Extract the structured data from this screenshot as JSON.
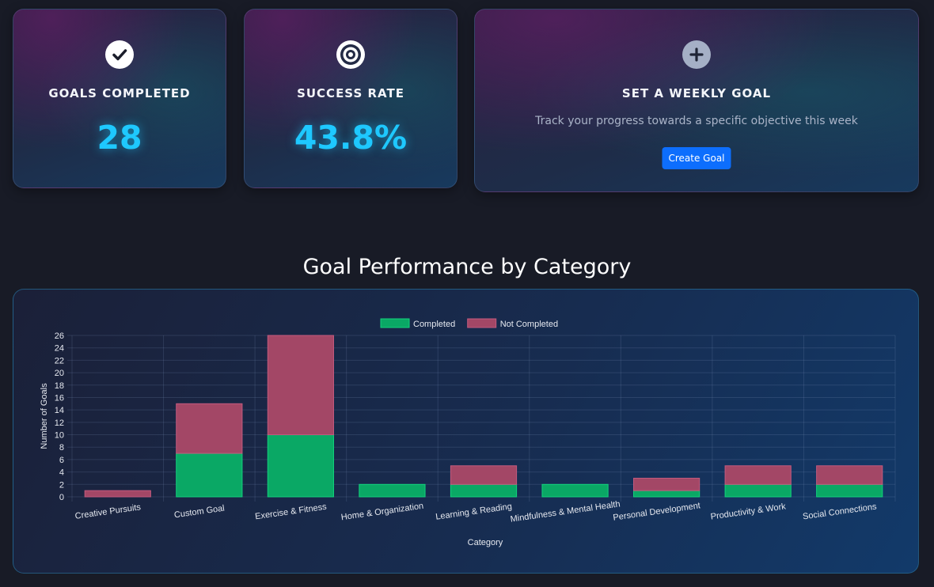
{
  "stats": {
    "completed": {
      "title": "GOALS COMPLETED",
      "value": "28",
      "icon": "check-circle-icon"
    },
    "success": {
      "title": "SUCCESS RATE",
      "value": "43.8%",
      "icon": "target-icon"
    }
  },
  "weekly_goal": {
    "title": "SET A WEEKLY GOAL",
    "description": "Track your progress towards a specific objective this week",
    "button_label": "Create Goal",
    "icon": "plus-circle-icon"
  },
  "section_title": "Goal Performance by Category",
  "colors": {
    "accent": "#1ec8ff",
    "button": "#0d6efd",
    "completed": "#0aa865",
    "not_completed": "#a34766"
  },
  "chart_data": {
    "type": "bar",
    "stacked": true,
    "categories": [
      "Creative Pursuits",
      "Custom Goal",
      "Exercise & Fitness",
      "Home & Organization",
      "Learning & Reading",
      "Mindfulness & Mental Health",
      "Personal Development",
      "Productivity & Work",
      "Social Connections"
    ],
    "series": [
      {
        "name": "Completed",
        "values": [
          0,
          7,
          10,
          2,
          2,
          2,
          1,
          2,
          2
        ],
        "color": "#0aa865"
      },
      {
        "name": "Not Completed",
        "values": [
          1,
          8,
          16,
          0,
          3,
          0,
          2,
          3,
          3
        ],
        "color": "#a34766"
      }
    ],
    "xlabel": "Category",
    "ylabel": "Number of Goals",
    "ylim": [
      0,
      26
    ],
    "yticks": [
      0,
      2,
      4,
      6,
      8,
      10,
      12,
      14,
      16,
      18,
      20,
      22,
      24,
      26
    ],
    "grid": true,
    "legend": "top-center"
  }
}
